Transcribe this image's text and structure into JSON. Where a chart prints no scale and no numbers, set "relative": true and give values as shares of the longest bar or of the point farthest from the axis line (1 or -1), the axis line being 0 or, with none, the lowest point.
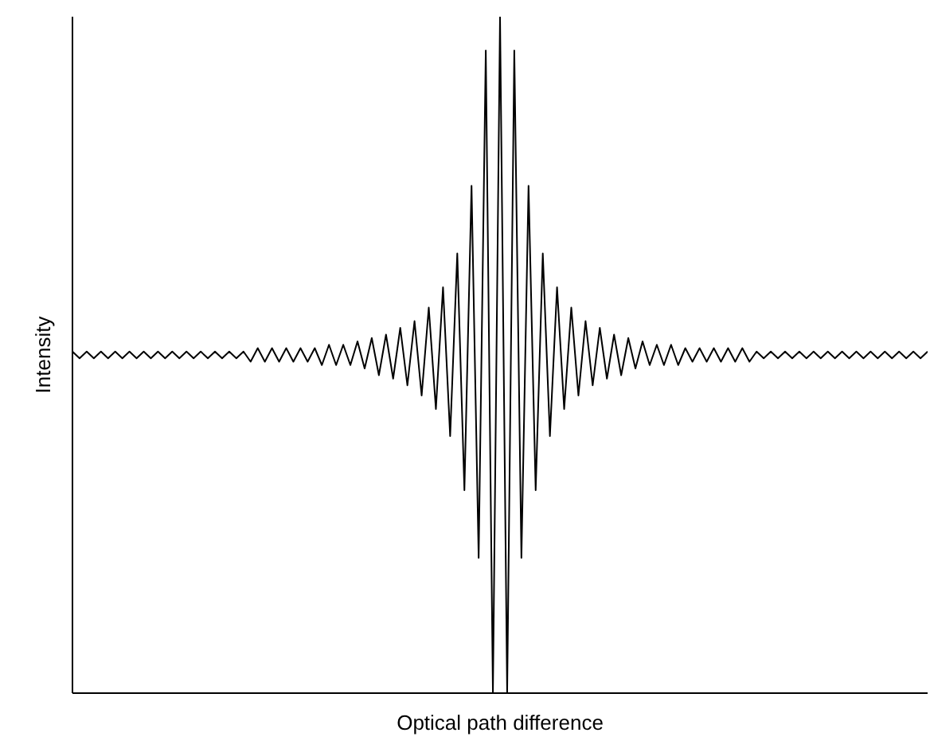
{
  "chart_data": {
    "type": "line",
    "relative": true,
    "xlabel": "Optical path difference",
    "ylabel": "Intensity",
    "categories": [
      null,
      null,
      null,
      null,
      null,
      null,
      null,
      null,
      null,
      null,
      null,
      null,
      null,
      null,
      null,
      null,
      null,
      null,
      null,
      null,
      null,
      null,
      null,
      null,
      null,
      null,
      null,
      null,
      null,
      null,
      null,
      null,
      null,
      null,
      null,
      null,
      null,
      null,
      null,
      null,
      null,
      null,
      null,
      null,
      null,
      null,
      null,
      null,
      null,
      null,
      null,
      null,
      null,
      null,
      null,
      null,
      null,
      null,
      null,
      null,
      null,
      null,
      null,
      null,
      null,
      null,
      null,
      null,
      null,
      null,
      null,
      null,
      null,
      null,
      null,
      null,
      null,
      null,
      null,
      null,
      null,
      null,
      null,
      null,
      null,
      null,
      null,
      null,
      null,
      null,
      null,
      null,
      null,
      null,
      null,
      null,
      null,
      null,
      null,
      null,
      null,
      null,
      null,
      null,
      null,
      null,
      null,
      null,
      null,
      null,
      null,
      null,
      null,
      null,
      null,
      null,
      null,
      null,
      null,
      null,
      null
    ],
    "series": [
      {
        "color": "#000000",
        "values": [
          0.505,
          0.495,
          0.505,
          0.495,
          0.505,
          0.495,
          0.505,
          0.495,
          0.505,
          0.495,
          0.505,
          0.495,
          0.505,
          0.495,
          0.505,
          0.495,
          0.505,
          0.495,
          0.505,
          0.495,
          0.505,
          0.495,
          0.505,
          0.495,
          0.505,
          0.49,
          0.51,
          0.49,
          0.51,
          0.49,
          0.51,
          0.49,
          0.51,
          0.49,
          0.51,
          0.485,
          0.515,
          0.485,
          0.515,
          0.485,
          0.52,
          0.48,
          0.525,
          0.47,
          0.53,
          0.465,
          0.54,
          0.455,
          0.55,
          0.44,
          0.57,
          0.42,
          0.6,
          0.38,
          0.65,
          0.3,
          0.75,
          0.2,
          0.95,
          0,
          1,
          0,
          0.95,
          0.2,
          0.75,
          0.3,
          0.65,
          0.38,
          0.6,
          0.42,
          0.57,
          0.44,
          0.55,
          0.455,
          0.54,
          0.465,
          0.53,
          0.47,
          0.525,
          0.48,
          0.52,
          0.485,
          0.515,
          0.485,
          0.515,
          0.485,
          0.51,
          0.49,
          0.51,
          0.49,
          0.51,
          0.49,
          0.51,
          0.49,
          0.51,
          0.49,
          0.505,
          0.495,
          0.505,
          0.495,
          0.505,
          0.495,
          0.505,
          0.495,
          0.505,
          0.495,
          0.505,
          0.495,
          0.505,
          0.495,
          0.505,
          0.495,
          0.505,
          0.495,
          0.505,
          0.495,
          0.505,
          0.495,
          0.505,
          0.495,
          0.505
        ]
      }
    ],
    "tick_labels": false
  }
}
